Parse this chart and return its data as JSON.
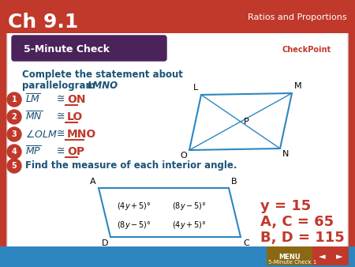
{
  "title": "Ch 9.1",
  "header_right": "Ratios and Proportions",
  "bg_color": "#c0392b",
  "banner_color": "#4a235a",
  "banner_text": "5-Minute Check",
  "item5": "Find the measure of each interior angle.",
  "answers": [
    "y = 15",
    "A, C = 65",
    "B, D = 115"
  ],
  "num_badge_color": "#c0392b",
  "answer_color": "#c0392b",
  "blue_color": "#2e86c1",
  "text_color": "#1a5276",
  "white": "#ffffff"
}
